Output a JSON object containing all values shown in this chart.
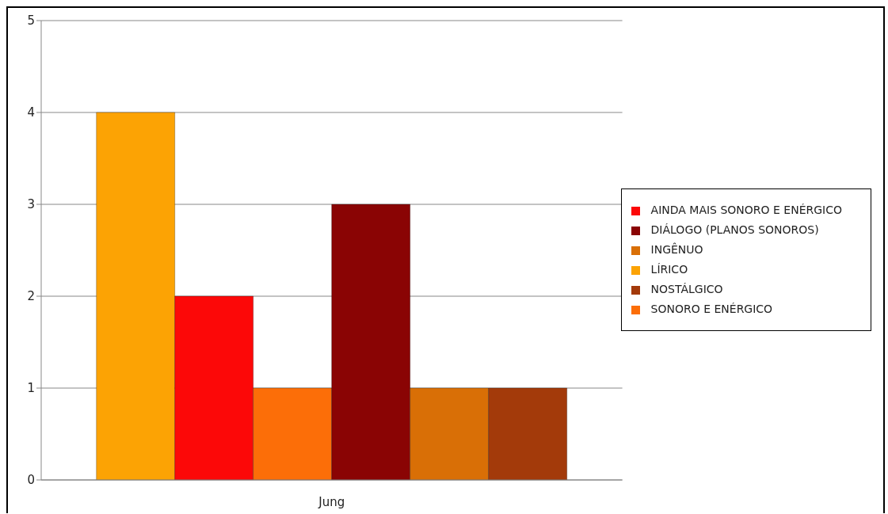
{
  "chart_data": {
    "type": "bar",
    "categories": [
      "Jung"
    ],
    "series": [
      {
        "name": "LÍRICO",
        "color": "#fca304",
        "values": [
          4
        ]
      },
      {
        "name": "AINDA MAIS SONORO E ENÉRGICO",
        "color": "#fc0808",
        "values": [
          2
        ]
      },
      {
        "name": "SONORO E ENÉRGICO",
        "color": "#fc6e08",
        "values": [
          1
        ]
      },
      {
        "name": "DIÁLOGO (PLANOS SONOROS)",
        "color": "#8a0404",
        "values": [
          3
        ]
      },
      {
        "name": "INGÊNUO",
        "color": "#d96f06",
        "values": [
          1
        ]
      },
      {
        "name": "NOSTÁLGICO",
        "color": "#a33a0a",
        "values": [
          1
        ]
      }
    ],
    "ylim": [
      0,
      5
    ],
    "yticks": [
      0,
      1,
      2,
      3,
      4,
      5
    ],
    "grid": "y",
    "legend": "right"
  }
}
